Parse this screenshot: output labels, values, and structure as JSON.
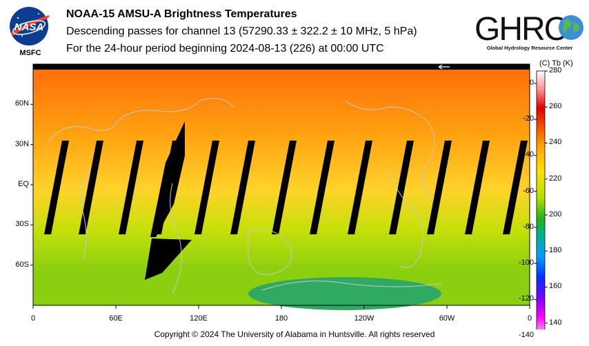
{
  "header": {
    "title": "NOAA-15 AMSU-A Brightness Temperatures",
    "subtitle": "Descending passes for channel 13 (57290.33 ± 322.2 ± 10 MHz, 5 hPa)",
    "period": "For the 24-hour period beginning 2024-08-13 (226) at 00:00 UTC"
  },
  "logos": {
    "nasa": {
      "text": "NASA",
      "sub": "MSFC",
      "icon": "nasa-meatball-icon"
    },
    "ghrc": {
      "text": "GHRC",
      "sub": "Global Hydrology Resource Center",
      "icon": "globe-icon"
    }
  },
  "map": {
    "lat_ticks": [
      "60N",
      "30N",
      "EQ",
      "30S",
      "60S"
    ],
    "lon_ticks": [
      "0",
      "60E",
      "120E",
      "180",
      "120W",
      "60W",
      "0"
    ],
    "colors": {
      "north": "#ff6a0a",
      "mid_north": "#ffa010",
      "tropics": "#ffd22a",
      "south": "#c8e00a",
      "deep_south": "#8ccf10",
      "antarctic": "#2faa60",
      "gap": "#000000",
      "coast": "#c8c8c8"
    }
  },
  "colorbar": {
    "header": "(C)  Tb  (K)",
    "celsius_ticks": [
      "0",
      "-20",
      "-40",
      "-60",
      "-80",
      "-100",
      "-120",
      "-140"
    ],
    "kelvin_ticks": [
      "280",
      "260",
      "240",
      "220",
      "200",
      "180",
      "160",
      "140"
    ],
    "range_k": [
      133,
      280
    ]
  },
  "footer": "Copyright © 2024 The University of Alabama in Huntsville.  All rights reserved"
}
